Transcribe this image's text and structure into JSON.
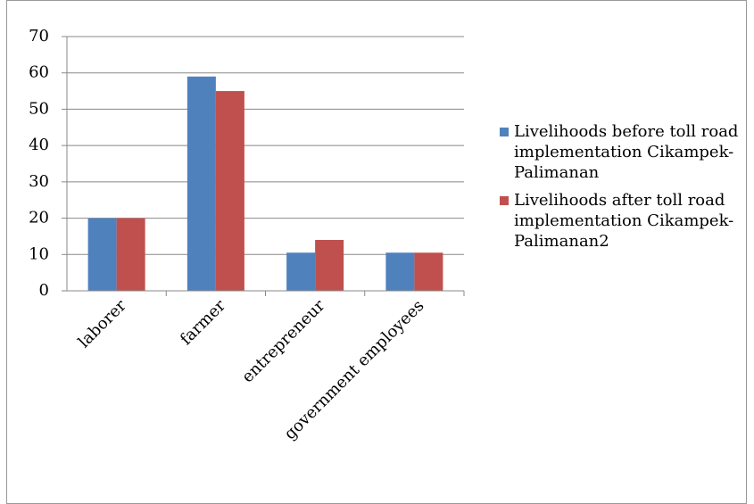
{
  "chart_data": {
    "type": "bar",
    "categories": [
      "laborer",
      "farmer",
      "entrepreneur",
      "government employees"
    ],
    "series": [
      {
        "name": "Livelihoods before toll road implementation Cikampek-Palimanan",
        "color": "#4f81bd",
        "values": [
          20,
          59,
          10.5,
          10.5
        ]
      },
      {
        "name": "Livelihoods after toll road implementation Cikampek-Palimanan2",
        "color": "#c0504d",
        "values": [
          20,
          55,
          14,
          10.5
        ]
      }
    ],
    "ylim": [
      0,
      70
    ],
    "yticks": [
      0,
      10,
      20,
      30,
      40,
      50,
      60,
      70
    ],
    "grid": true,
    "legend": "right"
  }
}
